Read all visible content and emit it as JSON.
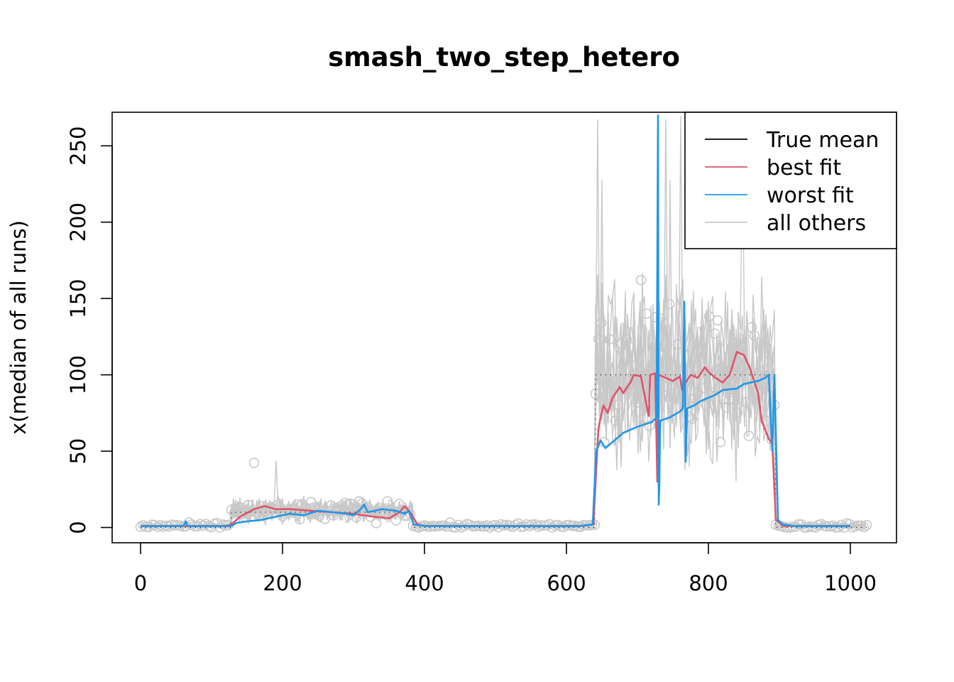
{
  "chart_data": {
    "type": "line",
    "title": "smash_two_step_hetero",
    "xlabel": "",
    "ylabel": "x(median of all runs)",
    "xlim": [
      -40,
      1065
    ],
    "ylim": [
      -10,
      272
    ],
    "x_ticks": [
      0,
      200,
      400,
      600,
      800,
      1000
    ],
    "y_ticks": [
      0,
      50,
      100,
      150,
      200,
      250
    ],
    "grid": false,
    "legend_position": "top-right",
    "legend": [
      {
        "label": "True mean",
        "color": "#000000"
      },
      {
        "label": "best fit",
        "color": "#DF536B"
      },
      {
        "label": "worst fit",
        "color": "#2297E6"
      },
      {
        "label": "all others",
        "color": "#C8C8C8"
      }
    ],
    "series": [
      {
        "name": "True mean",
        "color": "#000000",
        "style": "dotted",
        "points": [
          [
            0,
            0
          ],
          [
            127,
            0
          ],
          [
            128,
            10
          ],
          [
            383,
            10
          ],
          [
            384,
            0
          ],
          [
            640,
            0
          ],
          [
            641,
            100
          ],
          [
            894,
            100
          ],
          [
            895,
            0
          ],
          [
            1023,
            0
          ]
        ]
      },
      {
        "name": "best fit",
        "color": "#DF536B",
        "points": [
          [
            0,
            1
          ],
          [
            120,
            1
          ],
          [
            128,
            2
          ],
          [
            140,
            7
          ],
          [
            160,
            12
          ],
          [
            175,
            14
          ],
          [
            190,
            12
          ],
          [
            210,
            12
          ],
          [
            240,
            11
          ],
          [
            270,
            10
          ],
          [
            300,
            9
          ],
          [
            330,
            7
          ],
          [
            350,
            6
          ],
          [
            365,
            10
          ],
          [
            372,
            14
          ],
          [
            380,
            10
          ],
          [
            390,
            2
          ],
          [
            400,
            1
          ],
          [
            620,
            1
          ],
          [
            638,
            2
          ],
          [
            645,
            65
          ],
          [
            652,
            80
          ],
          [
            658,
            75
          ],
          [
            665,
            85
          ],
          [
            675,
            92
          ],
          [
            680,
            88
          ],
          [
            690,
            95
          ],
          [
            695,
            100
          ],
          [
            705,
            99
          ],
          [
            712,
            82
          ],
          [
            716,
            73
          ],
          [
            718,
            100
          ],
          [
            725,
            101
          ],
          [
            728,
            30
          ],
          [
            730,
            100
          ],
          [
            740,
            98
          ],
          [
            750,
            96
          ],
          [
            760,
            99
          ],
          [
            763,
            90
          ],
          [
            768,
            95
          ],
          [
            775,
            100
          ],
          [
            785,
            98
          ],
          [
            795,
            105
          ],
          [
            800,
            102
          ],
          [
            810,
            98
          ],
          [
            820,
            95
          ],
          [
            830,
            100
          ],
          [
            840,
            115
          ],
          [
            850,
            113
          ],
          [
            858,
            105
          ],
          [
            865,
            95
          ],
          [
            870,
            88
          ],
          [
            875,
            70
          ],
          [
            885,
            58
          ],
          [
            890,
            55
          ],
          [
            895,
            5
          ],
          [
            905,
            1
          ],
          [
            1000,
            1
          ]
        ]
      },
      {
        "name": "worst fit",
        "color": "#2297E6",
        "points": [
          [
            0,
            1
          ],
          [
            60,
            1
          ],
          [
            64,
            4
          ],
          [
            66,
            1
          ],
          [
            128,
            1
          ],
          [
            135,
            3
          ],
          [
            150,
            4
          ],
          [
            170,
            5
          ],
          [
            190,
            7
          ],
          [
            210,
            9
          ],
          [
            230,
            8
          ],
          [
            250,
            11
          ],
          [
            270,
            10
          ],
          [
            290,
            9
          ],
          [
            300,
            8
          ],
          [
            310,
            12
          ],
          [
            315,
            15
          ],
          [
            320,
            10
          ],
          [
            330,
            11
          ],
          [
            340,
            12
          ],
          [
            360,
            11
          ],
          [
            372,
            9
          ],
          [
            378,
            11
          ],
          [
            385,
            2
          ],
          [
            400,
            1
          ],
          [
            620,
            1
          ],
          [
            637,
            2
          ],
          [
            642,
            50
          ],
          [
            648,
            57
          ],
          [
            655,
            52
          ],
          [
            665,
            56
          ],
          [
            680,
            62
          ],
          [
            700,
            66
          ],
          [
            720,
            69
          ],
          [
            727,
            72
          ],
          [
            729,
            270
          ],
          [
            730,
            15
          ],
          [
            731,
            30
          ],
          [
            732,
            70
          ],
          [
            745,
            72
          ],
          [
            760,
            76
          ],
          [
            764,
            78
          ],
          [
            766,
            148
          ],
          [
            768,
            43
          ],
          [
            770,
            78
          ],
          [
            780,
            80
          ],
          [
            790,
            83
          ],
          [
            800,
            85
          ],
          [
            810,
            87
          ],
          [
            820,
            90
          ],
          [
            840,
            91
          ],
          [
            850,
            94
          ],
          [
            860,
            95
          ],
          [
            870,
            96
          ],
          [
            880,
            98
          ],
          [
            885,
            100
          ],
          [
            890,
            50
          ],
          [
            893,
            100
          ],
          [
            898,
            5
          ],
          [
            905,
            2
          ],
          [
            920,
            1
          ],
          [
            1000,
            1
          ]
        ]
      }
    ],
    "others": {
      "name": "all others",
      "color": "#C8C8C8",
      "n_runs": 10,
      "segments": [
        {
          "x_range": [
            0,
            127
          ],
          "mean": 1,
          "spread": 1.2,
          "peak": 4
        },
        {
          "x_range": [
            128,
            383
          ],
          "mean": 11,
          "spread": 5,
          "peak": 51
        },
        {
          "x_range": [
            384,
            640
          ],
          "mean": 1,
          "spread": 1.2,
          "peak": 4
        },
        {
          "x_range": [
            641,
            894
          ],
          "mean": 100,
          "spread": 35,
          "peak": 272
        },
        {
          "x_range": [
            895,
            1023
          ],
          "mean": 1,
          "spread": 1.2,
          "peak": 4
        }
      ]
    }
  }
}
